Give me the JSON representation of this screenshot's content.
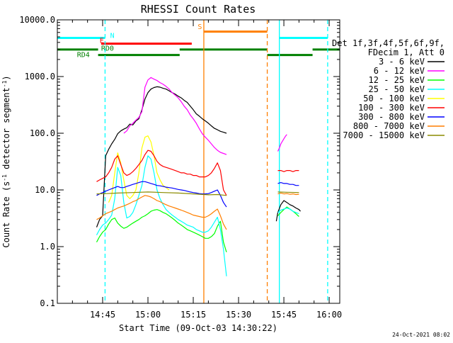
{
  "chart_data": {
    "type": "line",
    "title": "RHESSI Count Rates",
    "xlabel": "Start Time (09-Oct-03 14:30:22)",
    "ylabel_parts": [
      "Count Rate (s",
      "-1",
      " detector segment",
      "-1",
      ")"
    ],
    "y_scale": "log",
    "ylim": [
      0.1,
      10000.0
    ],
    "xlim_minutes": [
      0,
      93.5
    ],
    "x_origin_time": "14:30",
    "ytick_values": [
      0.1,
      1.0,
      10.0,
      100.0,
      1000.0,
      10000.0
    ],
    "ytick_labels": [
      "0.1",
      "1.0",
      "10.0",
      "100.0",
      "1000.0",
      "10000.0"
    ],
    "xtick_minutes": [
      15,
      30,
      45,
      60,
      75,
      90
    ],
    "xtick_labels": [
      "14:45",
      "15:00",
      "15:15",
      "15:30",
      "15:45",
      "16:00"
    ],
    "legend": {
      "placement": "right",
      "header_lines": [
        "Det 1f,3f,4f,5f,6f,9f,",
        "FDecim 1, Att 0"
      ]
    },
    "series": [
      {
        "name": "3 - 6 keV",
        "color": "#000000",
        "segments": [
          {
            "x": [
              13,
              14,
              15,
              16,
              17,
              18,
              19,
              20,
              21,
              22,
              23,
              24,
              25,
              26,
              27,
              28,
              29,
              30,
              31,
              32,
              33,
              34,
              35,
              36,
              37,
              38,
              39,
              40,
              41,
              42,
              43,
              44,
              45,
              46,
              47,
              48,
              49,
              50,
              51,
              52,
              53,
              54,
              55,
              56
            ],
            "y": [
              2.2,
              3,
              3.5,
              40,
              52,
              65,
              78,
              98,
              110,
              118,
              125,
              145,
              140,
              165,
              180,
              260,
              400,
              520,
              600,
              640,
              660,
              650,
              620,
              600,
              560,
              520,
              490,
              450,
              420,
              380,
              350,
              300,
              260,
              220,
              200,
              180,
              165,
              150,
              135,
              122,
              115,
              108,
              104,
              100
            ]
          },
          {
            "x": [
              72.5,
              73,
              74,
              75,
              76,
              77,
              78,
              79,
              80,
              80.5
            ],
            "y": [
              2.8,
              4,
              5.5,
              6.5,
              6,
              5.5,
              5.2,
              4.8,
              4.5,
              4.2
            ]
          }
        ]
      },
      {
        "name": "6 - 12 keV",
        "color": "#ff00ff",
        "segments": [
          {
            "x": [
              22,
              23,
              24,
              25,
              26,
              27,
              28,
              29,
              30,
              31,
              32,
              33,
              34,
              35,
              36,
              37,
              38,
              39,
              40,
              41,
              42,
              43,
              44,
              45,
              46,
              47,
              48,
              49,
              50,
              51,
              52,
              53,
              54,
              55,
              56
            ],
            "y": [
              100,
              110,
              135,
              150,
              170,
              190,
              240,
              650,
              870,
              960,
              900,
              850,
              780,
              730,
              670,
              600,
              520,
              470,
              420,
              360,
              300,
              260,
              210,
              180,
              150,
              120,
              98,
              85,
              75,
              65,
              56,
              50,
              46,
              44,
              42
            ]
          },
          {
            "x": [
              73,
              73.5,
              74,
              74.5,
              75,
              75.5,
              76
            ],
            "y": [
              48,
              55,
              65,
              72,
              80,
              88,
              95
            ]
          }
        ]
      },
      {
        "name": "12 - 25 keV",
        "color": "#00ff00",
        "segments": [
          {
            "x": [
              13,
              14,
              15,
              16,
              17,
              18,
              19,
              20,
              21,
              22,
              23,
              24,
              25,
              26,
              27,
              28,
              29,
              30,
              31,
              32,
              33,
              34,
              35,
              36,
              37,
              38,
              39,
              40,
              41,
              42,
              43,
              44,
              45,
              46,
              47,
              48,
              49,
              50,
              51,
              52,
              53,
              54,
              55,
              56
            ],
            "y": [
              1.2,
              1.5,
              1.8,
              2,
              2.5,
              3,
              3.2,
              2.6,
              2.3,
              2.1,
              2.2,
              2.4,
              2.6,
              2.8,
              3,
              3.3,
              3.5,
              3.8,
              4.2,
              4.4,
              4.5,
              4.3,
              4,
              3.8,
              3.5,
              3.2,
              2.9,
              2.6,
              2.4,
              2.2,
              2,
              1.9,
              1.8,
              1.7,
              1.6,
              1.5,
              1.4,
              1.4,
              1.5,
              1.7,
              2.3,
              2.8,
              1.2,
              0.8
            ]
          },
          {
            "x": [
              73,
              74,
              75,
              76,
              77,
              78,
              79,
              80
            ],
            "y": [
              3.5,
              4,
              4.5,
              5,
              4.6,
              4.2,
              3.8,
              3.4
            ]
          }
        ]
      },
      {
        "name": "25 - 50 keV",
        "color": "#00ffff",
        "segments": [
          {
            "x": [
              13,
              14,
              15,
              16,
              17,
              18,
              19,
              20,
              21,
              22,
              23,
              24,
              25,
              26,
              27,
              28,
              29,
              30,
              31,
              32,
              33,
              34,
              35,
              36,
              37,
              38,
              39,
              40,
              41,
              42,
              43,
              44,
              45,
              46,
              47,
              48,
              49,
              50,
              51,
              52,
              53,
              54,
              55,
              56
            ],
            "y": [
              1.6,
              2,
              2.4,
              2.6,
              3,
              3.6,
              7,
              25,
              18,
              6,
              3.2,
              3.4,
              4,
              5.5,
              8,
              12,
              25,
              40,
              35,
              20,
              10,
              7,
              5.5,
              4.5,
              4,
              3.6,
              3.3,
              3,
              2.8,
              2.6,
              2.4,
              2.3,
              2.2,
              2,
              1.9,
              1.8,
              1.8,
              1.9,
              2.2,
              2.7,
              3.3,
              2,
              0.9,
              0.3
            ]
          },
          {
            "x": [
              73,
              74,
              75,
              76,
              77,
              78,
              79,
              80
            ],
            "y": [
              4,
              4.4,
              4.6,
              4.8,
              4.6,
              4.2,
              4,
              3.8
            ]
          }
        ]
      },
      {
        "name": "50 - 100 keV",
        "color": "#ffff00",
        "segments": [
          {
            "x": [
              17,
              18,
              19,
              20,
              21,
              22,
              23,
              24,
              25,
              26,
              27,
              28,
              29,
              30,
              31,
              32,
              33,
              34,
              35,
              36,
              37
            ],
            "y": [
              6,
              8,
              20,
              45,
              30,
              15,
              8,
              7,
              8,
              10,
              20,
              55,
              85,
              90,
              70,
              40,
              20,
              15,
              12,
              11,
              10
            ]
          }
        ]
      },
      {
        "name": "100 - 300 keV",
        "color": "#ff0000",
        "segments": [
          {
            "x": [
              13,
              14,
              15,
              16,
              17,
              18,
              19,
              20,
              21,
              22,
              23,
              24,
              25,
              26,
              27,
              28,
              29,
              30,
              31,
              32,
              33,
              34,
              35,
              36,
              37,
              38,
              39,
              40,
              41,
              42,
              43,
              44,
              45,
              46,
              47,
              48,
              49,
              50,
              51,
              52,
              53,
              54,
              55,
              56
            ],
            "y": [
              14,
              15,
              16,
              17,
              20,
              25,
              35,
              40,
              28,
              20,
              18,
              19,
              21,
              24,
              28,
              33,
              42,
              50,
              48,
              40,
              32,
              28,
              26,
              25,
              24,
              23,
              22,
              21,
              20,
              20,
              19,
              19,
              18,
              18,
              17,
              17,
              17,
              18,
              20,
              24,
              30,
              22,
              10,
              8
            ]
          },
          {
            "x": [
              73,
              74,
              75,
              76,
              77,
              78,
              79,
              80
            ],
            "y": [
              22,
              22,
              21,
              22,
              22,
              21,
              22,
              22
            ]
          }
        ]
      },
      {
        "name": "300 - 800 keV",
        "color": "#0000ff",
        "segments": [
          {
            "x": [
              13,
              14,
              15,
              16,
              17,
              18,
              19,
              20,
              21,
              22,
              23,
              24,
              25,
              26,
              27,
              28,
              29,
              30,
              31,
              32,
              33,
              34,
              35,
              36,
              37,
              38,
              39,
              40,
              41,
              42,
              43,
              44,
              45,
              46,
              47,
              48,
              49,
              50,
              51,
              52,
              53,
              54,
              55,
              56
            ],
            "y": [
              8,
              8.5,
              9,
              9.5,
              10,
              10.5,
              11,
              11.5,
              11,
              11,
              11.5,
              12,
              12.5,
              13,
              13.5,
              14,
              14,
              13.5,
              13,
              12.5,
              12,
              11.8,
              11.5,
              11.2,
              11,
              10.8,
              10.5,
              10.2,
              10,
              9.8,
              9.5,
              9.2,
              9,
              8.8,
              8.6,
              8.5,
              8.5,
              8.6,
              9,
              9.5,
              10,
              8,
              6,
              5
            ]
          },
          {
            "x": [
              73,
              74,
              75,
              76,
              77,
              78,
              79,
              80
            ],
            "y": [
              13,
              13.5,
              13,
              13,
              12.5,
              12.5,
              12,
              12
            ]
          }
        ]
      },
      {
        "name": "800 - 7000 keV",
        "color": "#ff7f00",
        "segments": [
          {
            "x": [
              13,
              14,
              15,
              16,
              17,
              18,
              19,
              20,
              21,
              22,
              23,
              24,
              25,
              26,
              27,
              28,
              29,
              30,
              31,
              32,
              33,
              34,
              35,
              36,
              37,
              38,
              39,
              40,
              41,
              42,
              43,
              44,
              45,
              46,
              47,
              48,
              49,
              50,
              51,
              52,
              53,
              54,
              55,
              56
            ],
            "y": [
              3,
              3.2,
              3.5,
              3.8,
              4,
              4.2,
              4.5,
              4.8,
              5,
              5.2,
              5.5,
              5.8,
              6.2,
              6.5,
              7,
              7.5,
              8,
              7.8,
              7.5,
              7,
              6.5,
              6.2,
              5.8,
              5.5,
              5.2,
              5,
              4.8,
              4.6,
              4.4,
              4.2,
              4,
              3.8,
              3.6,
              3.5,
              3.4,
              3.3,
              3.3,
              3.5,
              3.8,
              4.2,
              4.6,
              3.5,
              2.5,
              2
            ]
          },
          {
            "x": [
              73,
              74,
              75,
              76,
              77,
              78,
              79,
              80
            ],
            "y": [
              8.5,
              8.8,
              8.5,
              8.6,
              8.4,
              8.5,
              8.3,
              8.4
            ]
          }
        ]
      },
      {
        "name": "7000 - 15000 keV",
        "color": "#8b8b00",
        "segments": [
          {
            "x": [
              13,
              16,
              20,
              25,
              30,
              35,
              40,
              45,
              50,
              53,
              56
            ],
            "y": [
              8.5,
              8.6,
              8.8,
              9,
              9.2,
              9,
              8.8,
              8.5,
              8.2,
              8.3,
              8
            ]
          },
          {
            "x": [
              73,
              76,
              80
            ],
            "y": [
              9.2,
              9.1,
              9
            ]
          }
        ]
      }
    ],
    "vertical_lines": [
      {
        "x": 15.8,
        "color": "#00ffff",
        "style": "dashed"
      },
      {
        "x": 48.5,
        "color": "#ff7f00",
        "style": "solid"
      },
      {
        "x": 69.5,
        "color": "#ff7f00",
        "style": "dashed"
      },
      {
        "x": 73.5,
        "color": "#00ffff",
        "style": "solid"
      },
      {
        "x": 89.5,
        "color": "#00ffff",
        "style": "dashed"
      }
    ],
    "flag_bars": [
      {
        "label": "N",
        "color": "#00ffff",
        "y": 4800,
        "label_x": 17.5,
        "label_y": 4800,
        "segments": [
          [
            0,
            15.8
          ],
          [
            73.5,
            89.5
          ]
        ]
      },
      {
        "label": "S",
        "color": "#ff7f00",
        "y": 6200,
        "label_x": 46.5,
        "label_y": 6900,
        "segments": [
          [
            48.5,
            69.5
          ]
        ]
      },
      {
        "label": "E",
        "color": "#ff0000",
        "y": 3800,
        "label_x": 14.0,
        "label_y": 3900,
        "segments": [
          [
            14.5,
            44.5
          ]
        ]
      },
      {
        "label": "RD0",
        "color": "#008000",
        "y": 3000,
        "label_x": 14.5,
        "label_y": 2850,
        "segments": [
          [
            0,
            13.5
          ],
          [
            40.5,
            69.5
          ],
          [
            84.5,
            93.5
          ]
        ]
      },
      {
        "label": "RD4",
        "color": "#008000",
        "y": 2400,
        "label_x": 6.5,
        "label_y": 2200,
        "segments": [
          [
            13.5,
            40.5
          ],
          [
            69.5,
            84.5
          ]
        ]
      }
    ]
  },
  "footer": {
    "timestamp": "24-Oct-2021 08:02"
  }
}
